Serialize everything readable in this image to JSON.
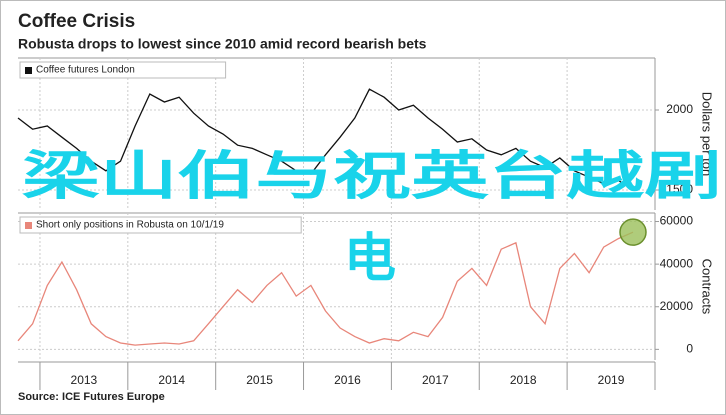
{
  "title": "Coffee Crisis",
  "subtitle": "Robusta drops to lowest since 2010 amid record bearish bets",
  "source": "Source: ICE Futures Europe",
  "overlay_text": [
    "梁山伯与祝英台越剧",
    "电"
  ],
  "chart_data": [
    {
      "type": "line",
      "y_label": "Dollars per ton",
      "series": [
        {
          "name": "Coffee futures London",
          "color": "#111111",
          "values": [
            1950,
            1880,
            1900,
            1830,
            1760,
            1680,
            1620,
            1680,
            1900,
            2100,
            2050,
            2080,
            1980,
            1900,
            1850,
            1780,
            1760,
            1720,
            1680,
            1620,
            1600,
            1720,
            1830,
            1950,
            2130,
            2080,
            2000,
            2030,
            1950,
            1880,
            1800,
            1820,
            1750,
            1720,
            1760,
            1680,
            1640,
            1700,
            1620,
            1580,
            1540,
            1560,
            1500
          ]
        }
      ],
      "xlim": [
        2012.75,
        2019.75
      ],
      "xticks": [
        2013,
        2014,
        2015,
        2016,
        2017,
        2018,
        2019
      ],
      "ylim": [
        1375,
        2325
      ],
      "yticks": [
        1500,
        2000
      ],
      "grid": true
    },
    {
      "type": "line",
      "y_label": "Contracts",
      "series": [
        {
          "name": "Short only positions in Robusta on 10/1/19",
          "color": "#e8867a",
          "values": [
            4000,
            12000,
            30000,
            41000,
            28000,
            12000,
            6000,
            3000,
            2000,
            2500,
            3000,
            2500,
            4000,
            12000,
            20000,
            28000,
            22000,
            30000,
            36000,
            25000,
            30000,
            18000,
            10000,
            6000,
            3000,
            5000,
            4000,
            8000,
            6000,
            15000,
            32000,
            38000,
            30000,
            47000,
            50000,
            20000,
            12000,
            38000,
            45000,
            36000,
            48000,
            52000,
            55000
          ]
        }
      ],
      "xlim": [
        2012.75,
        2019.75
      ],
      "xticks": [
        2013,
        2014,
        2015,
        2016,
        2017,
        2018,
        2019
      ],
      "ylim": [
        -5000,
        64000
      ],
      "yticks": [
        0,
        20000,
        40000,
        60000
      ],
      "grid": true,
      "highlight_last": true,
      "highlight_color": "#9bbf5a"
    }
  ]
}
